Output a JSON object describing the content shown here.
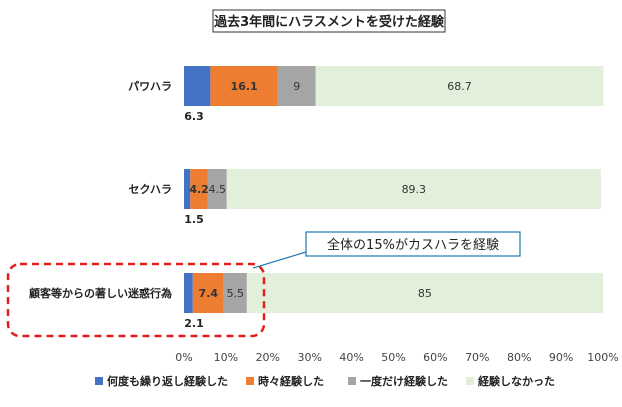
{
  "chart_data": {
    "type": "bar",
    "orientation": "horizontal",
    "stacked": true,
    "title": "過去3年間にハラスメントを受けた経験",
    "categories": [
      "パワハラ",
      "セクハラ",
      "顧客等からの著しい迷惑行為"
    ],
    "series": [
      {
        "name": "何度も繰り返し経験した",
        "color": "#4472c4",
        "values": [
          6.3,
          1.5,
          2.1
        ]
      },
      {
        "name": "時々経験した",
        "color": "#ed7d31",
        "values": [
          16.1,
          4.2,
          7.4
        ]
      },
      {
        "name": "一度だけ経験した",
        "color": "#a5a5a5",
        "values": [
          9,
          4.5,
          5.5
        ]
      },
      {
        "name": "経験しなかった",
        "color": "#e2efda",
        "values": [
          68.7,
          89.3,
          85
        ]
      }
    ],
    "xlim": [
      0,
      100
    ],
    "xticks": [
      "0%",
      "10%",
      "20%",
      "30%",
      "40%",
      "50%",
      "60%",
      "70%",
      "80%",
      "90%",
      "100%"
    ],
    "legend_position": "bottom",
    "grid": false,
    "annotation": "全体の15%がカスハラを経験",
    "highlighted_category": "顧客等からの著しい迷惑行為"
  }
}
